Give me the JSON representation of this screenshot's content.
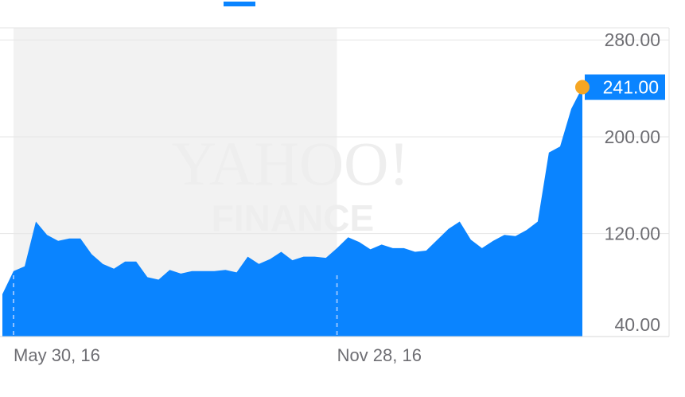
{
  "range_tab": {
    "active": true,
    "color": "#0a84ff"
  },
  "watermark": {
    "line1": "YAHOO!",
    "line2": "FINANCE"
  },
  "colors": {
    "area": "#0a84ff",
    "marker": "#f5a623",
    "grid": "#e6e6e6",
    "shade": "#f2f2f2",
    "axis_text": "#6e6e73"
  },
  "chart_data": {
    "type": "area",
    "ylim": [
      35,
      290
    ],
    "y_ticks": [
      "280.00",
      "200.00",
      "120.00",
      "40.00"
    ],
    "y_tick_values": [
      280,
      200,
      120,
      40
    ],
    "x_tick_labels": [
      "May 30, 16",
      "Nov 28, 16"
    ],
    "x_tick_index": [
      1,
      30
    ],
    "shaded_range_index": [
      1,
      30
    ],
    "current_value": 241,
    "current_label": "241.00",
    "grid": true,
    "series": [
      {
        "values": [
          70,
          89,
          93,
          130,
          119,
          114,
          116,
          116,
          103,
          95,
          91,
          97,
          97,
          84,
          82,
          90,
          87,
          89,
          89,
          89,
          90,
          88,
          101,
          95,
          99,
          105,
          98,
          101,
          101,
          100,
          108,
          117,
          113,
          107,
          111,
          108,
          108,
          105,
          106,
          115,
          124,
          130,
          115,
          108,
          114,
          119,
          118,
          123,
          130,
          187,
          192,
          223,
          241
        ]
      }
    ]
  }
}
